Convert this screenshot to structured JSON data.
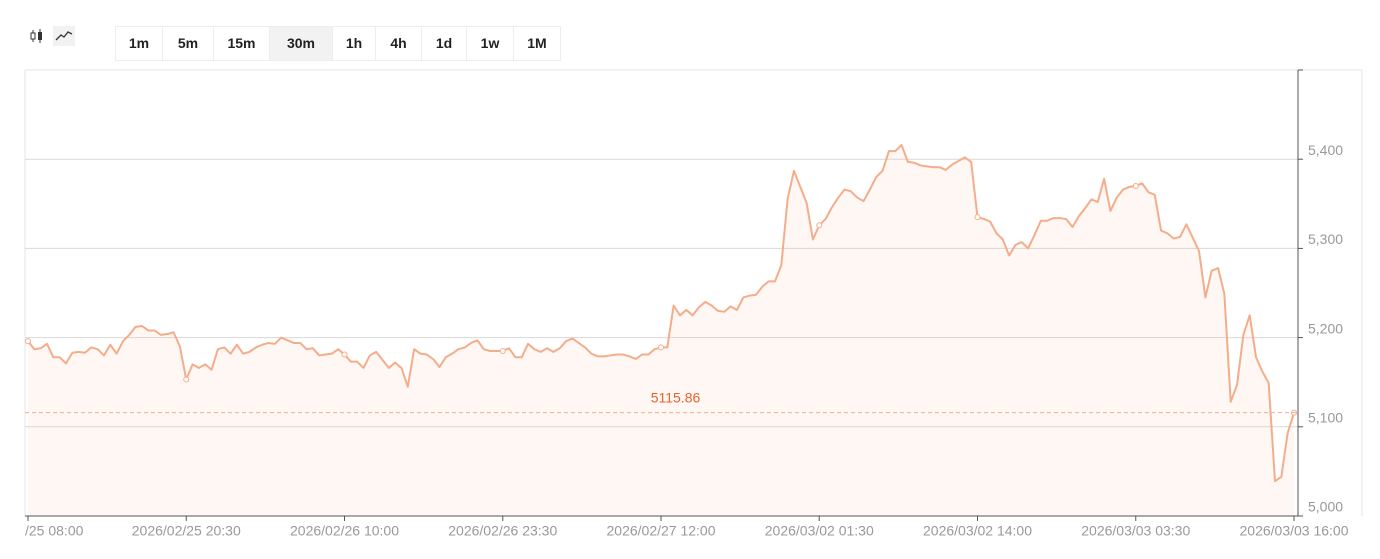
{
  "toolbar": {
    "intervals": [
      "1m",
      "5m",
      "15m",
      "30m",
      "1h",
      "4h",
      "1d",
      "1w",
      "1M"
    ],
    "selected": "30m"
  },
  "chart_data": {
    "type": "area",
    "categories": [
      "/25 08:00",
      null,
      null,
      null,
      null,
      null,
      null,
      null,
      null,
      null,
      null,
      null,
      null,
      null,
      null,
      null,
      null,
      null,
      null,
      null,
      null,
      null,
      null,
      null,
      null,
      "2026/02/25 20:30",
      null,
      null,
      null,
      null,
      null,
      null,
      null,
      null,
      null,
      null,
      null,
      null,
      null,
      null,
      null,
      null,
      null,
      null,
      null,
      null,
      null,
      null,
      null,
      null,
      "2026/02/26 10:00",
      null,
      null,
      null,
      null,
      null,
      null,
      null,
      null,
      null,
      null,
      null,
      null,
      null,
      null,
      null,
      null,
      null,
      null,
      null,
      null,
      null,
      null,
      null,
      null,
      "2026/02/26 23:30",
      null,
      null,
      null,
      null,
      null,
      null,
      null,
      null,
      null,
      null,
      null,
      null,
      null,
      null,
      null,
      null,
      null,
      null,
      null,
      null,
      null,
      null,
      null,
      null,
      "2026/02/27 12:00",
      null,
      null,
      null,
      null,
      null,
      null,
      null,
      null,
      null,
      null,
      null,
      null,
      null,
      null,
      null,
      null,
      null,
      null,
      null,
      null,
      null,
      null,
      null,
      null,
      "2026/03/02 01:30",
      null,
      null,
      null,
      null,
      null,
      null,
      null,
      null,
      null,
      null,
      null,
      null,
      null,
      null,
      null,
      null,
      null,
      null,
      null,
      null,
      null,
      null,
      null,
      null,
      "2026/03/02 14:00",
      null,
      null,
      null,
      null,
      null,
      null,
      null,
      null,
      null,
      null,
      null,
      null,
      null,
      null,
      null,
      null,
      null,
      null,
      null,
      null,
      null,
      null,
      null,
      null,
      "2026/03/03 03:30",
      null,
      null,
      null,
      null,
      null,
      null,
      null,
      null,
      null,
      null,
      null,
      null,
      null,
      null,
      null,
      null,
      null,
      null,
      null,
      null,
      null,
      null,
      null,
      null,
      "2026/03/03 16:00"
    ],
    "values": [
      5196,
      5187,
      5188,
      5193,
      5178,
      5178,
      5171,
      5183,
      5184,
      5183,
      5189,
      5187,
      5180,
      5192,
      5182,
      5196,
      5203,
      5212,
      5213,
      5208,
      5208,
      5203,
      5204,
      5206,
      5190,
      5153,
      5170,
      5166,
      5170,
      5164,
      5187,
      5189,
      5182,
      5192,
      5182,
      5184,
      5189,
      5192,
      5194,
      5193,
      5200,
      5197,
      5194,
      5194,
      5187,
      5188,
      5180,
      5181,
      5182,
      5187,
      5181,
      5173,
      5173,
      5166,
      5180,
      5184,
      5175,
      5166,
      5172,
      5166,
      5145,
      5187,
      5182,
      5181,
      5176,
      5167,
      5178,
      5182,
      5187,
      5189,
      5194,
      5197,
      5187,
      5185,
      5185,
      5185,
      5188,
      5178,
      5178,
      5193,
      5187,
      5184,
      5188,
      5184,
      5188,
      5196,
      5199,
      5194,
      5189,
      5182,
      5179,
      5179,
      5180,
      5181,
      5181,
      5179,
      5176,
      5181,
      5181,
      5187,
      5189,
      5189,
      5236,
      5225,
      5231,
      5225,
      5234,
      5240,
      5236,
      5230,
      5229,
      5235,
      5231,
      5245,
      5247,
      5248,
      5257,
      5263,
      5263,
      5281,
      5355,
      5387,
      5369,
      5351,
      5310,
      5326,
      5333,
      5346,
      5357,
      5366,
      5364,
      5357,
      5353,
      5366,
      5380,
      5387,
      5409,
      5409,
      5416,
      5397,
      5396,
      5393,
      5392,
      5391,
      5391,
      5388,
      5394,
      5398,
      5402,
      5397,
      5335,
      5333,
      5330,
      5317,
      5310,
      5292,
      5304,
      5307,
      5300,
      5315,
      5331,
      5331,
      5334,
      5334,
      5333,
      5324,
      5336,
      5345,
      5355,
      5352,
      5378,
      5342,
      5357,
      5366,
      5369,
      5370,
      5373,
      5363,
      5360,
      5320,
      5317,
      5311,
      5313,
      5327,
      5312,
      5297,
      5245,
      5275,
      5278,
      5249,
      5128,
      5147,
      5203,
      5225,
      5178,
      5162,
      5149,
      5039,
      5044,
      5093,
      5115.86
    ],
    "color": "#f4ad8a",
    "current_price": 5115.86,
    "current_price_color": "#e8622c",
    "ylim": [
      5000,
      5500
    ],
    "yticks": [
      {
        "value": 5000,
        "label": "5,000"
      },
      {
        "value": 5100,
        "label": "5,100"
      },
      {
        "value": 5200,
        "label": "5,200"
      },
      {
        "value": 5300,
        "label": "5,300"
      },
      {
        "value": 5400,
        "label": "5,400"
      }
    ],
    "grid": true
  }
}
